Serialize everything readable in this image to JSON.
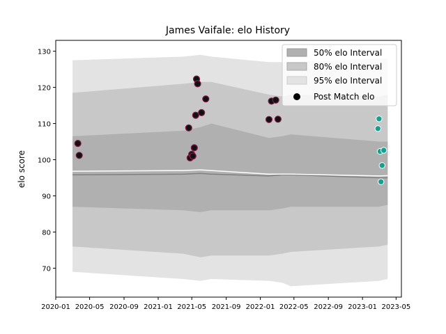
{
  "chart_data": {
    "type": "area",
    "title": "James Vaifale: elo History",
    "xlabel": "",
    "ylabel": "elo score",
    "xlim": [
      "2020-01-01",
      "2023-05-20"
    ],
    "ylim": [
      62,
      133
    ],
    "x_ticks": [
      "2020-01",
      "2020-05",
      "2020-09",
      "2021-01",
      "2021-05",
      "2021-09",
      "2022-01",
      "2022-05",
      "2022-09",
      "2023-01",
      "2023-05"
    ],
    "y_ticks": [
      70,
      80,
      90,
      100,
      110,
      120,
      130
    ],
    "legend_position": "top-right",
    "legend": {
      "band50": "50% elo Interval",
      "band80": "80% elo Interval",
      "band95": "95% elo Interval",
      "points": "Post Match elo"
    },
    "colors": {
      "band50": "#b0b0b0",
      "band80": "#c8c8c8",
      "band95": "#e3e3e3",
      "mean": "#ffffff",
      "median": "#808080",
      "marker_past": "#111111",
      "marker_past_edge": "#8b1a4a",
      "marker_recent": "#17a090"
    },
    "bands": {
      "x": [
        "2020-03-01",
        "2021-04-01",
        "2021-06-01",
        "2021-07-10",
        "2022-02-01",
        "2022-03-20",
        "2022-04-20",
        "2023-03-01",
        "2023-04-01"
      ],
      "p025": [
        69,
        67,
        66.5,
        67,
        66.5,
        66,
        65,
        66.5,
        67
      ],
      "p10": [
        76,
        74,
        73,
        73.5,
        73.5,
        74,
        74.5,
        76,
        76.5
      ],
      "p25": [
        87,
        86,
        85.5,
        86,
        86,
        86.5,
        87,
        87,
        87.5
      ],
      "p75": [
        106.5,
        108,
        109,
        110,
        106,
        106.5,
        107,
        105,
        105
      ],
      "p90": [
        118.5,
        121,
        121.5,
        121.5,
        118,
        117.5,
        118,
        117.5,
        118
      ],
      "p975": [
        127.5,
        128.5,
        129,
        128.5,
        127,
        127,
        127,
        128,
        128
      ],
      "mean": [
        96.8,
        97,
        97.2,
        97,
        96,
        96,
        96,
        95.5,
        95.6
      ],
      "median": [
        95.8,
        96,
        96.2,
        96,
        95.5,
        95.8,
        95.8,
        95,
        95
      ]
    },
    "series": [
      {
        "name": "Post Match elo",
        "group": "past",
        "points": [
          {
            "x": "2020-03-20",
            "y": 104.5
          },
          {
            "x": "2020-03-25",
            "y": 101.2
          },
          {
            "x": "2021-04-20",
            "y": 108.8
          },
          {
            "x": "2021-04-25",
            "y": 100.5
          },
          {
            "x": "2021-05-01",
            "y": 101.5
          },
          {
            "x": "2021-05-05",
            "y": 101.0
          },
          {
            "x": "2021-05-10",
            "y": 103.3
          },
          {
            "x": "2021-05-15",
            "y": 112.3
          },
          {
            "x": "2021-05-18",
            "y": 122.3
          },
          {
            "x": "2021-05-22",
            "y": 121.0
          },
          {
            "x": "2021-06-05",
            "y": 113.0
          },
          {
            "x": "2021-06-20",
            "y": 116.8
          },
          {
            "x": "2022-02-01",
            "y": 111.1
          },
          {
            "x": "2022-02-10",
            "y": 116.2
          },
          {
            "x": "2022-02-25",
            "y": 116.5
          },
          {
            "x": "2022-03-05",
            "y": 111.2
          }
        ]
      },
      {
        "name": "Post Match elo",
        "group": "recent",
        "points": [
          {
            "x": "2023-02-25",
            "y": 108.6
          },
          {
            "x": "2023-03-01",
            "y": 111.3
          },
          {
            "x": "2023-03-05",
            "y": 102.3
          },
          {
            "x": "2023-03-08",
            "y": 93.9
          },
          {
            "x": "2023-03-12",
            "y": 98.4
          },
          {
            "x": "2023-03-18",
            "y": 102.6
          }
        ]
      }
    ]
  }
}
